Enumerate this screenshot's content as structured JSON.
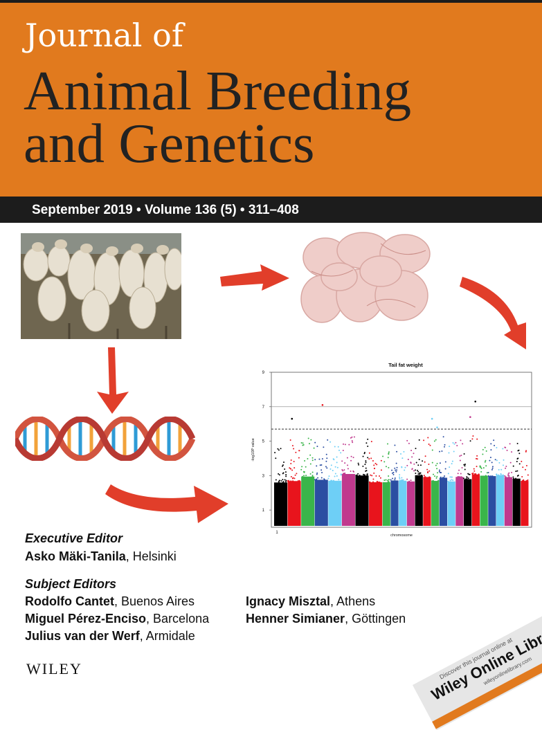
{
  "cover": {
    "title_line1": "Journal of",
    "title_line2": "Animal Breeding",
    "title_line3": "and Genetics",
    "issue_line": "September 2019 • Volume 136 (5) • 311–408",
    "accent_color": "#e17a1e",
    "arrow_color": "#e13e2a"
  },
  "chart_data": {
    "type": "scatter",
    "title": "Tail fat weight",
    "xlabel": "chromosome",
    "ylabel": "-log10P value",
    "ylim": [
      0,
      9
    ],
    "y_ticks": [
      "1",
      "3",
      "5",
      "7",
      "9"
    ],
    "x_ticks": [
      "1"
    ],
    "threshold_lines": [
      {
        "y": 7.0,
        "style": "solid"
      },
      {
        "y": 5.7,
        "style": "dashed"
      }
    ],
    "series_colors": [
      "#000000",
      "#e8141c",
      "#3ab54a",
      "#2b4ea2",
      "#6ecff6",
      "#c0398e"
    ],
    "grid": false,
    "legend": "none"
  },
  "editors": {
    "executive_heading": "Executive Editor",
    "executive": [
      {
        "name": "Asko Mäki-Tanila",
        "place": ", Helsinki"
      }
    ],
    "subject_heading": "Subject Editors",
    "subject_left": [
      {
        "name": "Rodolfo Cantet",
        "place": ", Buenos Aires"
      },
      {
        "name": "Miguel Pérez-Enciso",
        "place": ", Barcelona"
      },
      {
        "name": "Julius van der Werf",
        "place": ", Armidale"
      }
    ],
    "subject_right": [
      {
        "name": "Ignacy Misztal",
        "place": ", Athens"
      },
      {
        "name": "Henner Simianer",
        "place": ", Göttingen"
      }
    ]
  },
  "publisher": "WILEY",
  "online_banner": {
    "top_text": "Discover this journal online at",
    "main_text": "Wiley Online Library",
    "url_text": "wileyonlinelibrary.com"
  },
  "images": {
    "sheep_photo": "sheep-flock-photo",
    "fat_photo": "tail-fat-tissue-photo",
    "dna_graphic": "dna-helix-graphic"
  }
}
